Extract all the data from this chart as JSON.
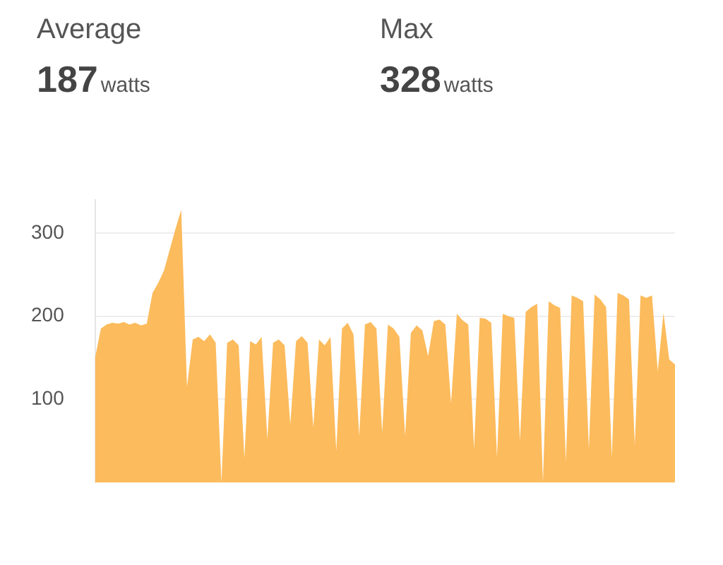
{
  "chart_data": {
    "type": "area",
    "annotations": [
      "Average",
      "187",
      "watts",
      "Max",
      "328",
      "watts"
    ],
    "categories": [
      null,
      null,
      null,
      null,
      null,
      null,
      null,
      null,
      null,
      null,
      null,
      null,
      null,
      null,
      null,
      null,
      null,
      null,
      null,
      null,
      null,
      null,
      null,
      null,
      null,
      null,
      null,
      null,
      null,
      null,
      null,
      null,
      null,
      null,
      null,
      null,
      null,
      null,
      null,
      null,
      null,
      null,
      null,
      null,
      null,
      null,
      null,
      null,
      null,
      null,
      null,
      null,
      null,
      null,
      null,
      null,
      null,
      null,
      null,
      null,
      null,
      null,
      null,
      null,
      null,
      null,
      null,
      null,
      null,
      null,
      null,
      null,
      null,
      null,
      null,
      null,
      null,
      null,
      null,
      null,
      null,
      null,
      null,
      null,
      null,
      null,
      null,
      null,
      null,
      null,
      null,
      null,
      null,
      null,
      null,
      null,
      null,
      null,
      null,
      null,
      null,
      null
    ],
    "series": [
      {
        "color": "#fcbb5c",
        "values": [
          150,
          185,
          190,
          192,
          191,
          193,
          190,
          192,
          189,
          191,
          228,
          240,
          255,
          280,
          305,
          328,
          115,
          172,
          175,
          170,
          178,
          168,
          0,
          168,
          172,
          165,
          29,
          170,
          166,
          175,
          52,
          168,
          172,
          165,
          70,
          170,
          176,
          168,
          66,
          172,
          165,
          175,
          38,
          185,
          192,
          178,
          56,
          190,
          193,
          185,
          60,
          190,
          185,
          175,
          56,
          180,
          189,
          183,
          152,
          194,
          196,
          190,
          95,
          203,
          195,
          190,
          40,
          198,
          197,
          192,
          30,
          203,
          200,
          198,
          50,
          205,
          211,
          215,
          0,
          218,
          213,
          210,
          25,
          225,
          222,
          218,
          40,
          226,
          220,
          211,
          30,
          228,
          225,
          220,
          45,
          225,
          222,
          225,
          134,
          204,
          148,
          142
        ]
      }
    ],
    "ylim": [
      0,
      340
    ],
    "yticks": [
      100,
      200,
      300
    ],
    "grid": "y",
    "tick_labels": "y",
    "marker": "none"
  }
}
